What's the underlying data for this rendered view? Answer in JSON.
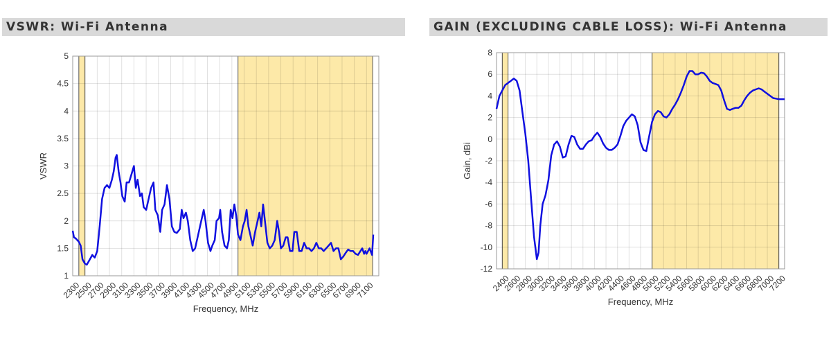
{
  "chart_data": [
    {
      "type": "line",
      "title": "VSWR: Wi-Fi Antenna",
      "xlabel": "Frequency, MHz",
      "ylabel": "VSWR",
      "xlim": [
        2300,
        7300
      ],
      "ylim": [
        1,
        5
      ],
      "xticks": [
        2300,
        2500,
        2700,
        2900,
        3100,
        3300,
        3500,
        3700,
        3900,
        4100,
        4300,
        4500,
        4700,
        4900,
        5100,
        5300,
        5500,
        5700,
        5900,
        6100,
        6300,
        6500,
        6700,
        6900,
        7100
      ],
      "yticks": [
        1,
        1.5,
        2,
        2.5,
        3,
        3.5,
        4,
        4.5,
        5
      ],
      "ytick_labels": [
        "1",
        "1.5",
        "2",
        "2.5",
        "3",
        "3.5",
        "4",
        "4.5",
        "5"
      ],
      "grid": true,
      "shaded_bands": [
        [
          2400,
          2500
        ],
        [
          5000,
          7200
        ]
      ],
      "band_color": "#fde9a8",
      "line_color": "#1010e0",
      "x": [
        2300,
        2320,
        2350,
        2400,
        2430,
        2460,
        2500,
        2530,
        2580,
        2620,
        2660,
        2700,
        2740,
        2780,
        2820,
        2860,
        2900,
        2940,
        2970,
        3000,
        3020,
        3050,
        3080,
        3110,
        3150,
        3180,
        3220,
        3260,
        3300,
        3330,
        3360,
        3400,
        3430,
        3460,
        3500,
        3540,
        3580,
        3620,
        3650,
        3690,
        3730,
        3760,
        3800,
        3840,
        3880,
        3920,
        3960,
        4000,
        4050,
        4080,
        4110,
        4150,
        4180,
        4220,
        4260,
        4300,
        4350,
        4400,
        4440,
        4470,
        4510,
        4550,
        4580,
        4620,
        4650,
        4690,
        4710,
        4740,
        4780,
        4820,
        4850,
        4880,
        4910,
        4940,
        4970,
        5000,
        5040,
        5080,
        5110,
        5140,
        5170,
        5200,
        5240,
        5280,
        5320,
        5350,
        5380,
        5410,
        5440,
        5480,
        5520,
        5560,
        5600,
        5640,
        5670,
        5700,
        5740,
        5780,
        5810,
        5850,
        5890,
        5920,
        5960,
        6000,
        6040,
        6080,
        6120,
        6160,
        6200,
        6240,
        6280,
        6320,
        6360,
        6400,
        6440,
        6480,
        6520,
        6560,
        6600,
        6640,
        6680,
        6720,
        6760,
        6800,
        6840,
        6880,
        6920,
        6960,
        7000,
        7030,
        7060,
        7080,
        7100,
        7150,
        7190,
        7210
      ],
      "y": [
        1.82,
        1.7,
        1.68,
        1.62,
        1.55,
        1.3,
        1.22,
        1.2,
        1.3,
        1.38,
        1.33,
        1.45,
        1.9,
        2.4,
        2.6,
        2.65,
        2.6,
        2.75,
        2.9,
        3.15,
        3.2,
        2.9,
        2.7,
        2.45,
        2.35,
        2.7,
        2.7,
        2.85,
        3.0,
        2.6,
        2.75,
        2.45,
        2.5,
        2.25,
        2.2,
        2.4,
        2.6,
        2.7,
        2.2,
        2.1,
        1.8,
        2.2,
        2.3,
        2.65,
        2.4,
        1.9,
        1.8,
        1.78,
        1.85,
        2.2,
        2.05,
        2.15,
        2.0,
        1.65,
        1.45,
        1.5,
        1.75,
        2.0,
        2.2,
        2.0,
        1.6,
        1.45,
        1.55,
        1.65,
        2.0,
        2.05,
        2.2,
        1.8,
        1.55,
        1.5,
        1.65,
        2.2,
        2.05,
        2.3,
        2.1,
        1.75,
        1.65,
        1.9,
        2.0,
        2.2,
        1.9,
        1.75,
        1.55,
        1.8,
        2.0,
        2.15,
        1.9,
        2.3,
        2.0,
        1.6,
        1.5,
        1.55,
        1.65,
        2.0,
        1.8,
        1.5,
        1.55,
        1.7,
        1.7,
        1.45,
        1.45,
        1.8,
        1.8,
        1.45,
        1.45,
        1.6,
        1.5,
        1.5,
        1.45,
        1.5,
        1.6,
        1.5,
        1.5,
        1.45,
        1.5,
        1.55,
        1.6,
        1.45,
        1.5,
        1.5,
        1.3,
        1.35,
        1.42,
        1.48,
        1.45,
        1.45,
        1.4,
        1.38,
        1.45,
        1.5,
        1.4,
        1.45,
        1.4,
        1.5,
        1.38,
        1.75
      ]
    },
    {
      "type": "line",
      "title": "GAIN (EXCLUDING CABLE LOSS): Wi-Fi Antenna",
      "xlabel": "Frequency, MHz",
      "ylabel": "Gain, dBi",
      "xlim": [
        2300,
        7300
      ],
      "ylim": [
        -12,
        8
      ],
      "xticks": [
        2400,
        2600,
        2800,
        3000,
        3200,
        3400,
        3600,
        3800,
        4000,
        4200,
        4400,
        4600,
        4800,
        5000,
        5200,
        5400,
        5600,
        5800,
        6000,
        6200,
        6400,
        6600,
        6800,
        7000,
        7200
      ],
      "yticks": [
        -12,
        -10,
        -8,
        -6,
        -4,
        -2,
        0,
        2,
        4,
        6,
        8
      ],
      "ytick_labels": [
        "-12",
        "-10",
        "-8",
        "-6",
        "-4",
        "-2",
        "0",
        "2",
        "4",
        "6",
        "8"
      ],
      "grid": true,
      "shaded_bands": [
        [
          2400,
          2500
        ],
        [
          5000,
          7200
        ]
      ],
      "band_color": "#fde9a8",
      "line_color": "#1010e0",
      "x": [
        2300,
        2350,
        2400,
        2450,
        2500,
        2550,
        2600,
        2650,
        2700,
        2750,
        2800,
        2850,
        2900,
        2950,
        3000,
        3030,
        3060,
        3100,
        3150,
        3200,
        3250,
        3300,
        3350,
        3400,
        3450,
        3500,
        3550,
        3600,
        3650,
        3700,
        3750,
        3800,
        3850,
        3900,
        3950,
        4000,
        4050,
        4100,
        4150,
        4200,
        4250,
        4300,
        4350,
        4400,
        4450,
        4500,
        4550,
        4600,
        4650,
        4700,
        4750,
        4800,
        4850,
        4900,
        4950,
        5000,
        5050,
        5100,
        5150,
        5200,
        5250,
        5300,
        5350,
        5400,
        5450,
        5500,
        5550,
        5600,
        5650,
        5700,
        5750,
        5800,
        5850,
        5900,
        5950,
        6000,
        6050,
        6100,
        6150,
        6200,
        6250,
        6300,
        6350,
        6400,
        6450,
        6500,
        6550,
        6600,
        6650,
        6700,
        6750,
        6800,
        6850,
        6900,
        6950,
        7000,
        7050,
        7100,
        7150,
        7200,
        7250,
        7300
      ],
      "y": [
        2.8,
        4.0,
        4.5,
        5.0,
        5.2,
        5.4,
        5.6,
        5.4,
        4.5,
        2.5,
        0.5,
        -2,
        -5.5,
        -9,
        -11.1,
        -10.5,
        -8,
        -6,
        -5.2,
        -3.8,
        -1.5,
        -0.5,
        -0.2,
        -0.7,
        -1.7,
        -1.6,
        -0.5,
        0.3,
        0.2,
        -0.5,
        -0.9,
        -0.9,
        -0.5,
        -0.2,
        -0.1,
        0.3,
        0.6,
        0.2,
        -0.4,
        -0.8,
        -1.0,
        -1.0,
        -0.8,
        -0.5,
        0.3,
        1.2,
        1.7,
        2.0,
        2.3,
        2.1,
        1.3,
        -0.3,
        -1.0,
        -1.1,
        0.3,
        1.6,
        2.3,
        2.6,
        2.5,
        2.1,
        2.0,
        2.3,
        2.8,
        3.2,
        3.7,
        4.3,
        5.0,
        5.8,
        6.3,
        6.3,
        6.0,
        6.0,
        6.15,
        6.1,
        5.8,
        5.4,
        5.2,
        5.1,
        5.0,
        4.5,
        3.6,
        2.8,
        2.7,
        2.8,
        2.9,
        2.9,
        3.1,
        3.6,
        4.0,
        4.3,
        4.5,
        4.6,
        4.7,
        4.6,
        4.4,
        4.2,
        4.0,
        3.8,
        3.75,
        3.7,
        3.7,
        3.7
      ]
    }
  ]
}
